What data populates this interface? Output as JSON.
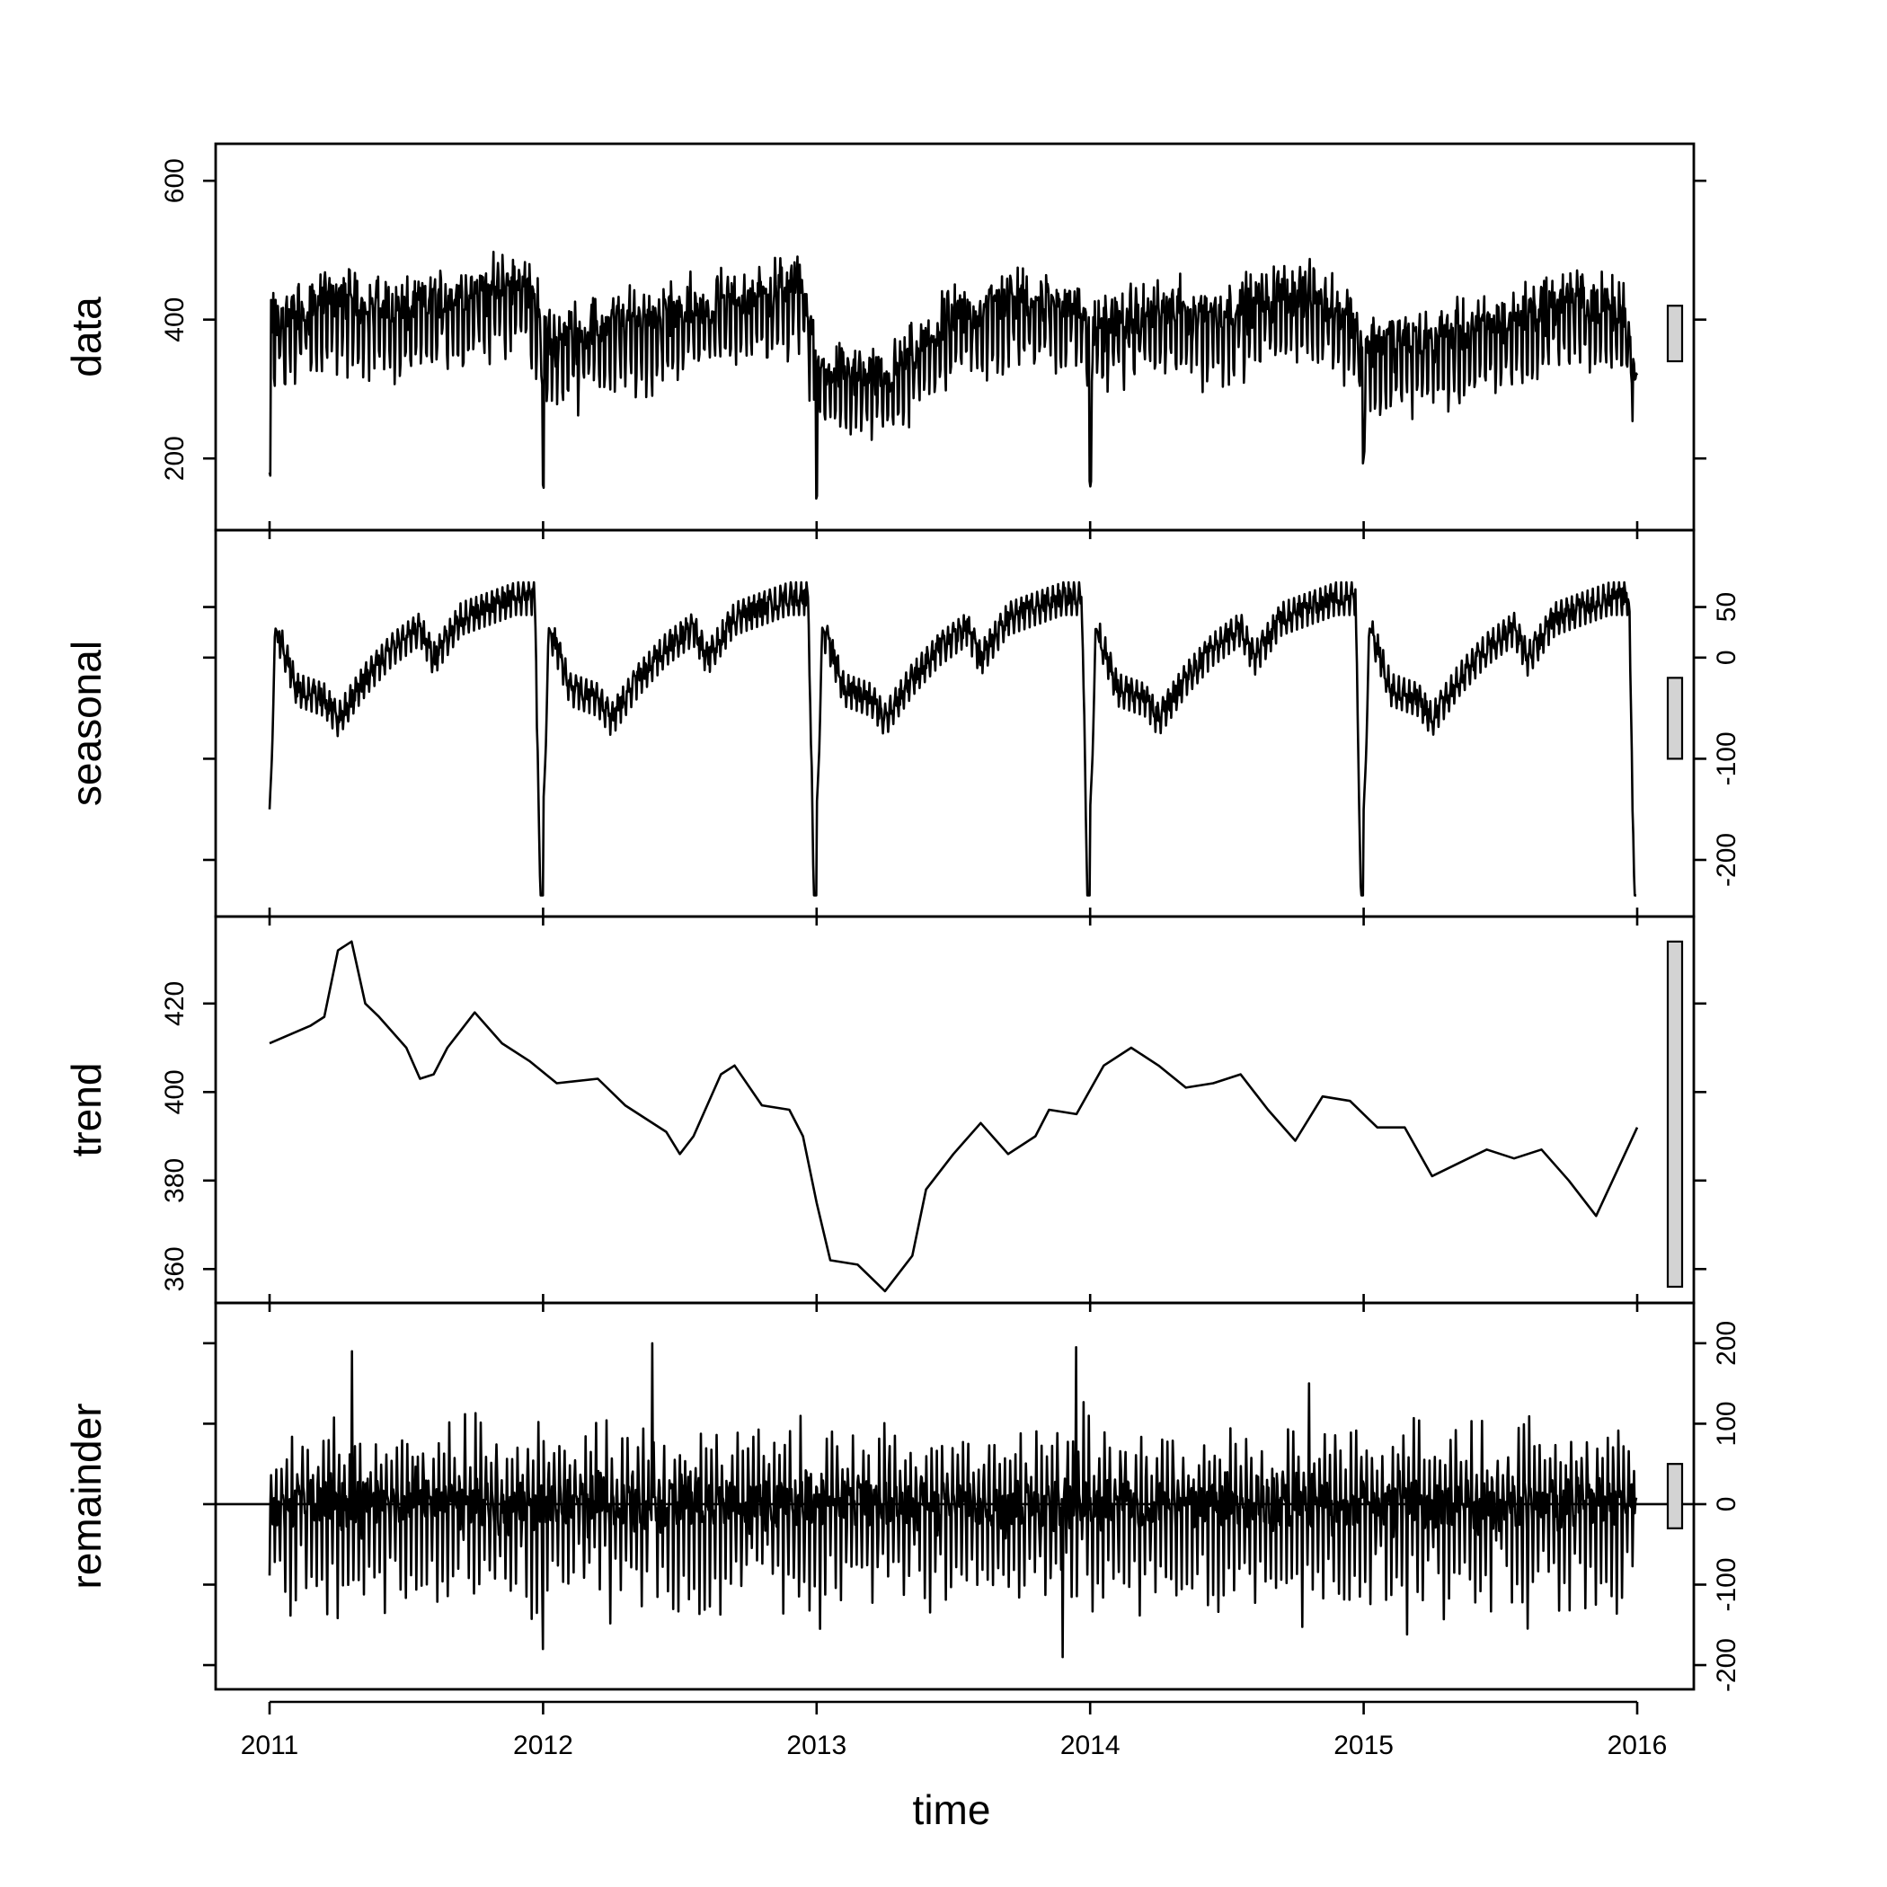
{
  "chart_data": {
    "type": "line",
    "x_axis": {
      "title": "time",
      "range": [
        2011.0,
        2016.0
      ],
      "ticks": [
        2011,
        2012,
        2013,
        2014,
        2015,
        2016
      ],
      "tick_labels": [
        "2011",
        "2012",
        "2013",
        "2014",
        "2015",
        "2016"
      ]
    },
    "panels": [
      {
        "name": "data",
        "y_range": [
          120,
          630
        ],
        "ticks": [
          200,
          400,
          600
        ],
        "tick_labels": [
          "200",
          "400",
          "600"
        ],
        "tick_side": "left",
        "scale_bar_range": [
          340,
          420
        ],
        "series": {
          "kind": "daily_noise",
          "base": 400,
          "weekly_amplitude": 60,
          "noise": 55,
          "year_start_dips": [
            140,
            140,
            140,
            185,
            120
          ],
          "end_value": 320,
          "x": [
            2011.0,
            2011.25,
            2011.5,
            2011.75,
            2011.95,
            2012.0,
            2012.25,
            2012.5,
            2012.75,
            2012.95,
            2013.0,
            2013.25,
            2013.5,
            2013.75,
            2013.95,
            2014.0,
            2014.25,
            2014.5,
            2014.75,
            2014.95,
            2015.0,
            2015.25,
            2015.5,
            2015.75,
            2015.95,
            2016.0
          ],
          "level": [
            380,
            420,
            400,
            430,
            440,
            360,
            380,
            400,
            420,
            440,
            320,
            300,
            390,
            420,
            410,
            380,
            400,
            400,
            430,
            400,
            350,
            360,
            380,
            420,
            400,
            300
          ]
        }
      },
      {
        "name": "seasonal",
        "y_range": [
          -240,
          110
        ],
        "ticks": [
          -200,
          -100,
          0,
          50
        ],
        "tick_labels": [
          "-200",
          "-100",
          "0",
          "50"
        ],
        "tick_side": "right",
        "scale_bar_range": [
          -100,
          -20
        ],
        "series": {
          "kind": "seasonal_repeat",
          "profile_x": [
            0.0,
            0.01,
            0.02,
            0.05,
            0.1,
            0.2,
            0.25,
            0.35,
            0.45,
            0.55,
            0.6,
            0.7,
            0.8,
            0.9,
            0.97,
            0.99
          ],
          "profile_y": [
            -150,
            -90,
            30,
            10,
            -30,
            -40,
            -60,
            -20,
            10,
            30,
            0,
            40,
            50,
            60,
            60,
            -240
          ],
          "wiggle": 18
        }
      },
      {
        "name": "trend",
        "y_range": [
          356,
          436
        ],
        "ticks": [
          360,
          380,
          400,
          420
        ],
        "tick_labels": [
          "360",
          "380",
          "400",
          "420"
        ],
        "tick_side": "left",
        "scale_bar_range": [
          356,
          434
        ],
        "series": {
          "kind": "line",
          "x": [
            2011.0,
            2011.15,
            2011.2,
            2011.25,
            2011.3,
            2011.35,
            2011.4,
            2011.5,
            2011.55,
            2011.6,
            2011.65,
            2011.75,
            2011.85,
            2011.95,
            2012.05,
            2012.2,
            2012.3,
            2012.45,
            2012.5,
            2012.55,
            2012.65,
            2012.7,
            2012.8,
            2012.9,
            2012.95,
            2013.0,
            2013.05,
            2013.15,
            2013.25,
            2013.35,
            2013.4,
            2013.5,
            2013.6,
            2013.7,
            2013.8,
            2013.85,
            2013.95,
            2014.05,
            2014.15,
            2014.25,
            2014.35,
            2014.45,
            2014.55,
            2014.65,
            2014.75,
            2014.85,
            2014.95,
            2015.05,
            2015.15,
            2015.25,
            2015.35,
            2015.45,
            2015.55,
            2015.65,
            2015.75,
            2015.85,
            2016.0
          ],
          "y": [
            411,
            415,
            417,
            432,
            434,
            420,
            417,
            410,
            403,
            404,
            410,
            418,
            411,
            407,
            402,
            403,
            397,
            391,
            386,
            390,
            404,
            406,
            397,
            396,
            390,
            375,
            362,
            361,
            355,
            363,
            378,
            386,
            393,
            386,
            390,
            396,
            395,
            406,
            410,
            406,
            401,
            402,
            404,
            396,
            389,
            399,
            398,
            392,
            392,
            381,
            384,
            387,
            385,
            387,
            380,
            372,
            392
          ]
        }
      },
      {
        "name": "remainder",
        "y_range": [
          -210,
          230
        ],
        "ticks": [
          -200,
          -100,
          0,
          100,
          200
        ],
        "tick_labels": [
          "-200",
          "-100",
          "0",
          "100",
          "200"
        ],
        "tick_side": "right",
        "scale_bar_range": [
          -30,
          50
        ],
        "series": {
          "kind": "daily_noise_zero",
          "noise": 55,
          "spikes": [
            [
              2011.3,
              190
            ],
            [
              2012.4,
              200
            ],
            [
              2013.95,
              195
            ],
            [
              2013.9,
              -190
            ],
            [
              2012.0,
              -180
            ],
            [
              2014.8,
              150
            ]
          ]
        }
      }
    ]
  }
}
